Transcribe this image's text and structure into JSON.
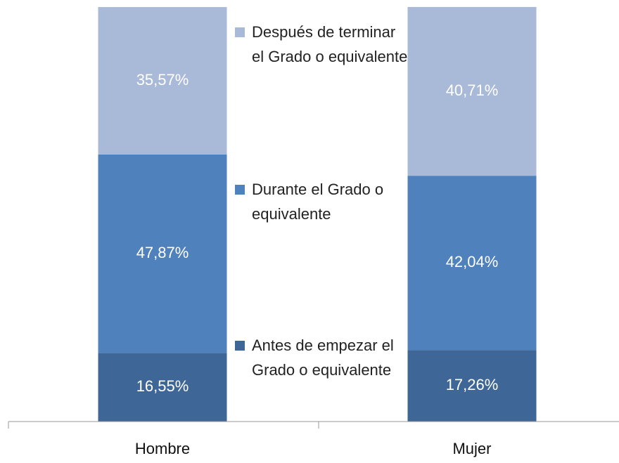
{
  "chart_data": {
    "type": "stacked-bar",
    "categories": [
      "Hombre",
      "Mujer"
    ],
    "series": [
      {
        "name": "Antes de empezar el Grado o equivalente",
        "color": "#3e6697",
        "values": [
          16.55,
          17.26
        ],
        "value_labels": [
          "16,55%",
          "17,26%"
        ]
      },
      {
        "name": "Durante el Grado o equivalente",
        "color": "#4f81bd",
        "values": [
          47.87,
          42.04
        ],
        "value_labels": [
          "47,87%",
          "42,04%"
        ]
      },
      {
        "name": "Después de terminar el Grado o equivalente",
        "color": "#a9b9d8",
        "values": [
          35.57,
          40.71
        ],
        "value_labels": [
          "35,57%",
          "40,71%"
        ]
      }
    ],
    "ylim": [
      0,
      100
    ]
  }
}
